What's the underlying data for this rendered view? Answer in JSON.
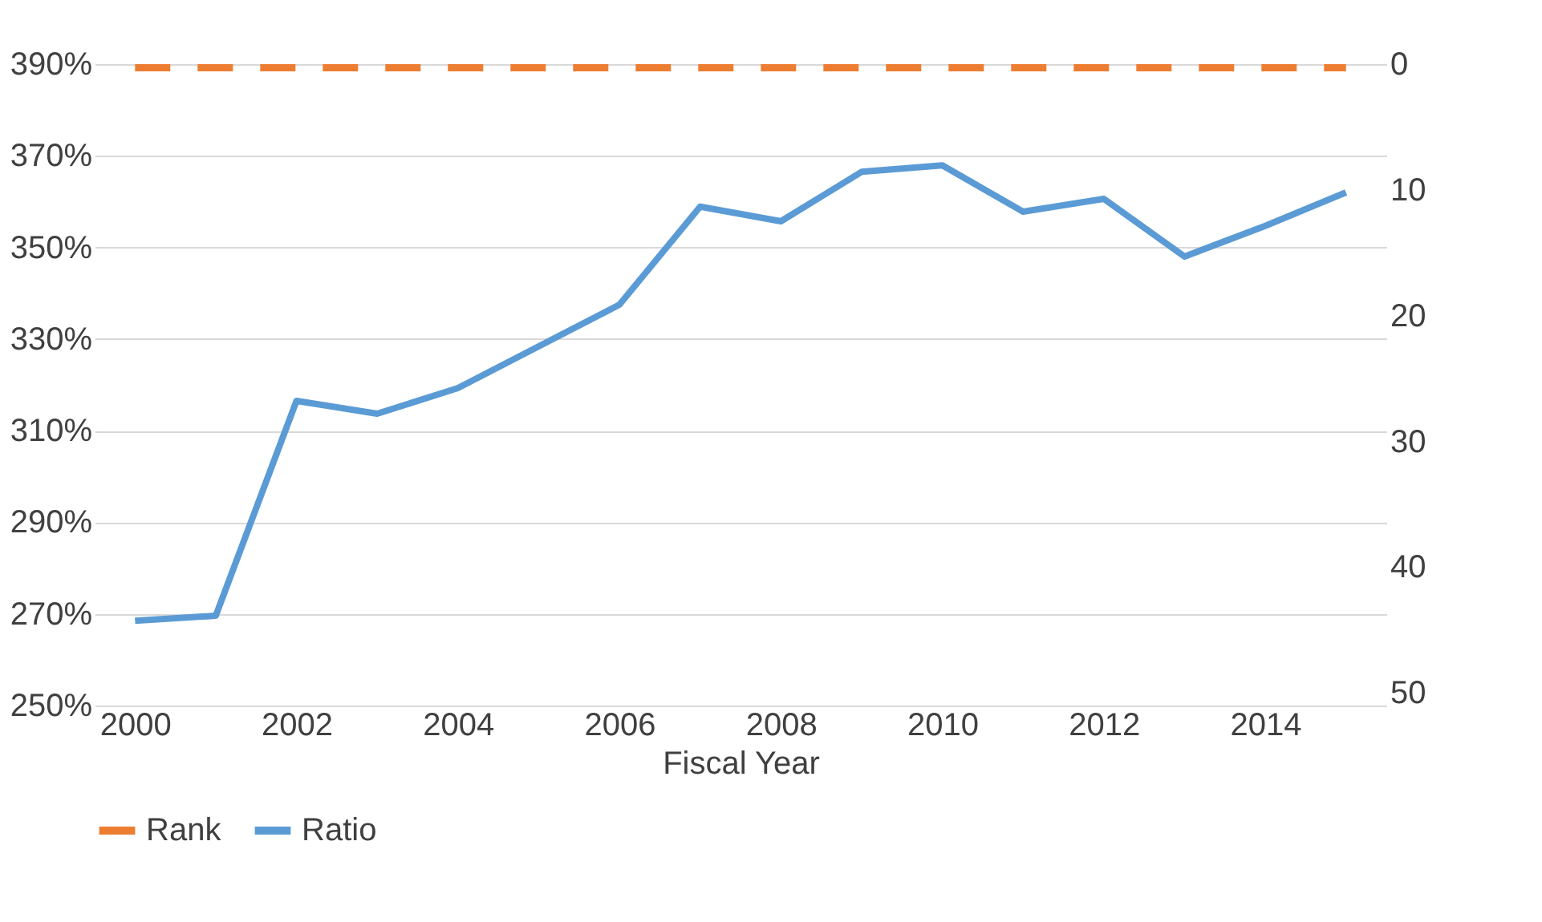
{
  "chart_data": {
    "type": "line",
    "xlabel": "Fiscal Year",
    "x": [
      2000,
      2001,
      2002,
      2003,
      2004,
      2005,
      2006,
      2007,
      2008,
      2009,
      2010,
      2011,
      2012,
      2013,
      2014,
      2015
    ],
    "xlim": [
      1999.5,
      2015.5
    ],
    "xticks": [
      2000,
      2002,
      2004,
      2006,
      2008,
      2010,
      2012,
      2014
    ],
    "ylim": [
      250,
      390
    ],
    "yticks": [
      {
        "value": 250,
        "label": "250%"
      },
      {
        "value": 270,
        "label": "270%"
      },
      {
        "value": 290,
        "label": "290%"
      },
      {
        "value": 310,
        "label": "310%"
      },
      {
        "value": 330,
        "label": "330%"
      },
      {
        "value": 350,
        "label": "350%"
      },
      {
        "value": 370,
        "label": "370%"
      },
      {
        "value": 390,
        "label": "390%"
      }
    ],
    "y2lim": [
      51,
      0
    ],
    "y2ticks": [
      0,
      10,
      20,
      30,
      40,
      50
    ],
    "grid": "y",
    "legend": "bottom",
    "marker": "none",
    "series": [
      {
        "name": "Rank",
        "color": "#ed7d31",
        "axis": "y2",
        "line_style": "dashed",
        "values": [
          0,
          0,
          0,
          0,
          0,
          0,
          0,
          0,
          0,
          0,
          0,
          0,
          0,
          0,
          0,
          0
        ]
      },
      {
        "name": "Ratio",
        "color": "#5b9bd5",
        "line_style": "solid",
        "values": [
          268.5,
          269.6,
          316.5,
          313.7,
          319.3,
          328.4,
          337.5,
          358.9,
          355.7,
          366.5,
          367.9,
          357.8,
          360.6,
          348,
          354.7,
          362
        ]
      }
    ]
  }
}
